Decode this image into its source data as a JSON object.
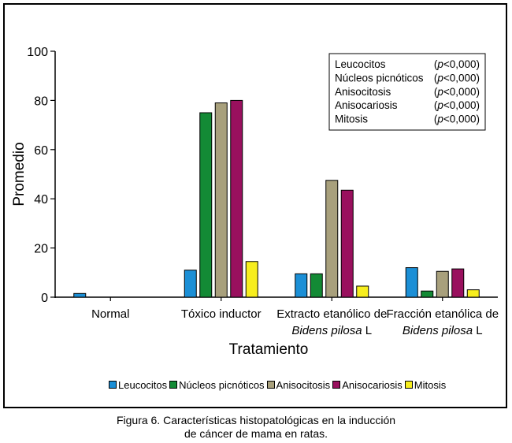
{
  "chart_data": {
    "type": "bar",
    "xlabel": "Tratamiento",
    "ylabel": "Promedio",
    "ylim": [
      0,
      100
    ],
    "yticks": [
      "0",
      "20",
      "40",
      "60",
      "80",
      "100"
    ],
    "grid": false,
    "legend_position": "bottom",
    "categories": [
      "Normal",
      "Tóxico inductor",
      "Extracto etanólico de Bidens pilosa L",
      "Fracción etanólica de Bidens pilosa L"
    ],
    "category_labels": [
      {
        "line1": "Normal",
        "line2_italic": "",
        "line2_plain": ""
      },
      {
        "line1": "Tóxico inductor",
        "line2_italic": "",
        "line2_plain": ""
      },
      {
        "line1": "Extracto etanólico de",
        "line2_italic": "Bidens pilosa",
        "line2_plain": " L"
      },
      {
        "line1": "Fracción etanólica de",
        "line2_italic": "Bidens pilosa",
        "line2_plain": " L"
      }
    ],
    "series": [
      {
        "name": "Leucocitos",
        "color": "#1b8fd6",
        "values": [
          1.5,
          11,
          9.5,
          12
        ]
      },
      {
        "name": "Núcleos picnóticos",
        "color": "#138a35",
        "values": [
          0,
          75,
          9.5,
          2.5
        ]
      },
      {
        "name": "Anisocitosis",
        "color": "#a8a07c",
        "values": [
          0,
          79,
          47.5,
          10.5
        ]
      },
      {
        "name": "Anisocariosis",
        "color": "#99105e",
        "values": [
          0,
          80,
          43.5,
          11.5
        ]
      },
      {
        "name": "Mitosis",
        "color": "#f7ee1e",
        "values": [
          0,
          14.5,
          4.5,
          3
        ]
      }
    ],
    "annotation_box": {
      "rows": [
        {
          "name": "Leucocitos",
          "p_letter": "p",
          "p_value": "<0,000"
        },
        {
          "name": "Núcleos picnóticos",
          "p_letter": "p",
          "p_value": "<0,000"
        },
        {
          "name": "Anisocitosis",
          "p_letter": "p",
          "p_value": "<0,000"
        },
        {
          "name": "Anisocariosis",
          "p_letter": "p",
          "p_value": "<0,000"
        },
        {
          "name": "Mitosis",
          "p_letter": "p",
          "p_value": "<0,000"
        }
      ]
    }
  },
  "caption": {
    "line1": "Figura 6. Características histopatológicas en la inducción",
    "line2": "de cáncer de mama en ratas."
  }
}
